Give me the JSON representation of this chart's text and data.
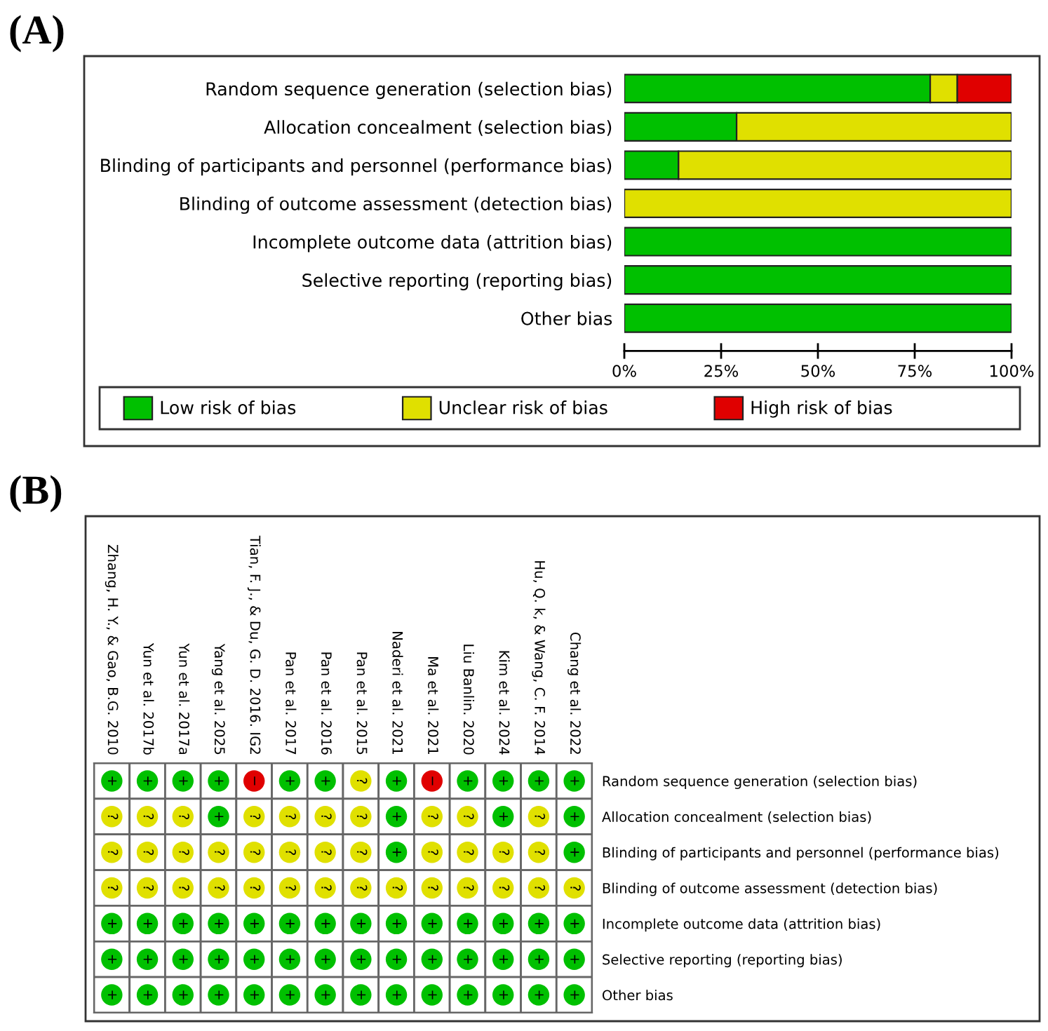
{
  "chart_data": [
    {
      "type": "bar",
      "title": "(A)",
      "orientation": "horizontal",
      "stacked": true,
      "categories": [
        "Random sequence generation (selection bias)",
        "Allocation concealment (selection bias)",
        "Blinding of participants and personnel (performance bias)",
        "Blinding of outcome assessment (detection bias)",
        "Incomplete outcome data (attrition bias)",
        "Selective reporting (reporting bias)",
        "Other bias"
      ],
      "series": [
        {
          "name": "Low risk of bias",
          "color": "#00c000",
          "values": [
            79,
            29,
            14,
            0,
            100,
            100,
            100
          ]
        },
        {
          "name": "Unclear risk of bias",
          "color": "#e0e000",
          "values": [
            7,
            71,
            86,
            100,
            0,
            0,
            0
          ]
        },
        {
          "name": "High risk of bias",
          "color": "#e00000",
          "values": [
            14,
            0,
            0,
            0,
            0,
            0,
            0
          ]
        }
      ],
      "xlim": [
        0,
        100
      ],
      "xticks": [
        {
          "value": 0,
          "label": "0%"
        },
        {
          "value": 25,
          "label": "25%"
        },
        {
          "value": 50,
          "label": "50%"
        },
        {
          "value": 75,
          "label": "75%"
        },
        {
          "value": 100,
          "label": "100%"
        }
      ],
      "legend": "bottom"
    },
    {
      "type": "heatmap",
      "title": "(B)",
      "categories": [
        "Zhang, H. Y., & Gao, B.G. 2010",
        "Yun et al. 2017b",
        "Yun et al. 2017a",
        "Yang et al. 2025",
        "Tian, F. J., & Du, G. D. 2016. IG2",
        "Pan et al. 2017",
        "Pan et al. 2016",
        "Pan et al. 2015",
        "Naderi et al. 2021",
        "Ma et al. 2021",
        "Liu Banlin. 2020",
        "Kim et al. 2024",
        "Hu, Q. k, & Wang, C. F. 2014",
        "Chang et al. 2022"
      ],
      "y_categories": [
        "Random sequence generation (selection bias)",
        "Allocation concealment (selection bias)",
        "Blinding of participants and personnel (performance bias)",
        "Blinding of outcome assessment (detection bias)",
        "Incomplete outcome data (attrition bias)",
        "Selective reporting (reporting bias)",
        "Other bias"
      ],
      "cells": [
        [
          "+",
          "+",
          "+",
          "+",
          "−",
          "+",
          "+",
          "?",
          "+",
          "−",
          "+",
          "+",
          "+",
          "+"
        ],
        [
          "?",
          "?",
          "?",
          "+",
          "?",
          "?",
          "?",
          "?",
          "+",
          "?",
          "?",
          "+",
          "?",
          "+"
        ],
        [
          "?",
          "?",
          "?",
          "?",
          "?",
          "?",
          "?",
          "?",
          "+",
          "?",
          "?",
          "?",
          "?",
          "+"
        ],
        [
          "?",
          "?",
          "?",
          "?",
          "?",
          "?",
          "?",
          "?",
          "?",
          "?",
          "?",
          "?",
          "?",
          "?"
        ],
        [
          "+",
          "+",
          "+",
          "+",
          "+",
          "+",
          "+",
          "+",
          "+",
          "+",
          "+",
          "+",
          "+",
          "+"
        ],
        [
          "+",
          "+",
          "+",
          "+",
          "+",
          "+",
          "+",
          "+",
          "+",
          "+",
          "+",
          "+",
          "+",
          "+"
        ],
        [
          "+",
          "+",
          "+",
          "+",
          "+",
          "+",
          "+",
          "+",
          "+",
          "+",
          "+",
          "+",
          "+",
          "+"
        ]
      ],
      "colors": [
        [
          "#00c000",
          "#00c000",
          "#00c000",
          "#00c000",
          "#e00000",
          "#00c000",
          "#00c000",
          "#e0e000",
          "#00c000",
          "#e00000",
          "#00c000",
          "#00c000",
          "#00c000",
          "#00c000"
        ],
        [
          "#e0e000",
          "#e0e000",
          "#e0e000",
          "#00c000",
          "#e0e000",
          "#e0e000",
          "#e0e000",
          "#e0e000",
          "#00c000",
          "#e0e000",
          "#e0e000",
          "#00c000",
          "#e0e000",
          "#00c000"
        ],
        [
          "#e0e000",
          "#e0e000",
          "#e0e000",
          "#e0e000",
          "#e0e000",
          "#e0e000",
          "#e0e000",
          "#e0e000",
          "#00c000",
          "#e0e000",
          "#e0e000",
          "#e0e000",
          "#e0e000",
          "#00c000"
        ],
        [
          "#e0e000",
          "#e0e000",
          "#e0e000",
          "#e0e000",
          "#e0e000",
          "#e0e000",
          "#e0e000",
          "#e0e000",
          "#e0e000",
          "#e0e000",
          "#e0e000",
          "#e0e000",
          "#e0e000",
          "#e0e000"
        ],
        [
          "#00c000",
          "#00c000",
          "#00c000",
          "#00c000",
          "#00c000",
          "#00c000",
          "#00c000",
          "#00c000",
          "#00c000",
          "#00c000",
          "#00c000",
          "#00c000",
          "#00c000",
          "#00c000"
        ],
        [
          "#00c000",
          "#00c000",
          "#00c000",
          "#00c000",
          "#00c000",
          "#00c000",
          "#00c000",
          "#00c000",
          "#00c000",
          "#00c000",
          "#00c000",
          "#00c000",
          "#00c000",
          "#00c000"
        ],
        [
          "#00c000",
          "#00c000",
          "#00c000",
          "#00c000",
          "#00c000",
          "#00c000",
          "#00c000",
          "#00c000",
          "#00c000",
          "#00c000",
          "#00c000",
          "#00c000",
          "#00c000",
          "#00c000"
        ]
      ]
    }
  ]
}
